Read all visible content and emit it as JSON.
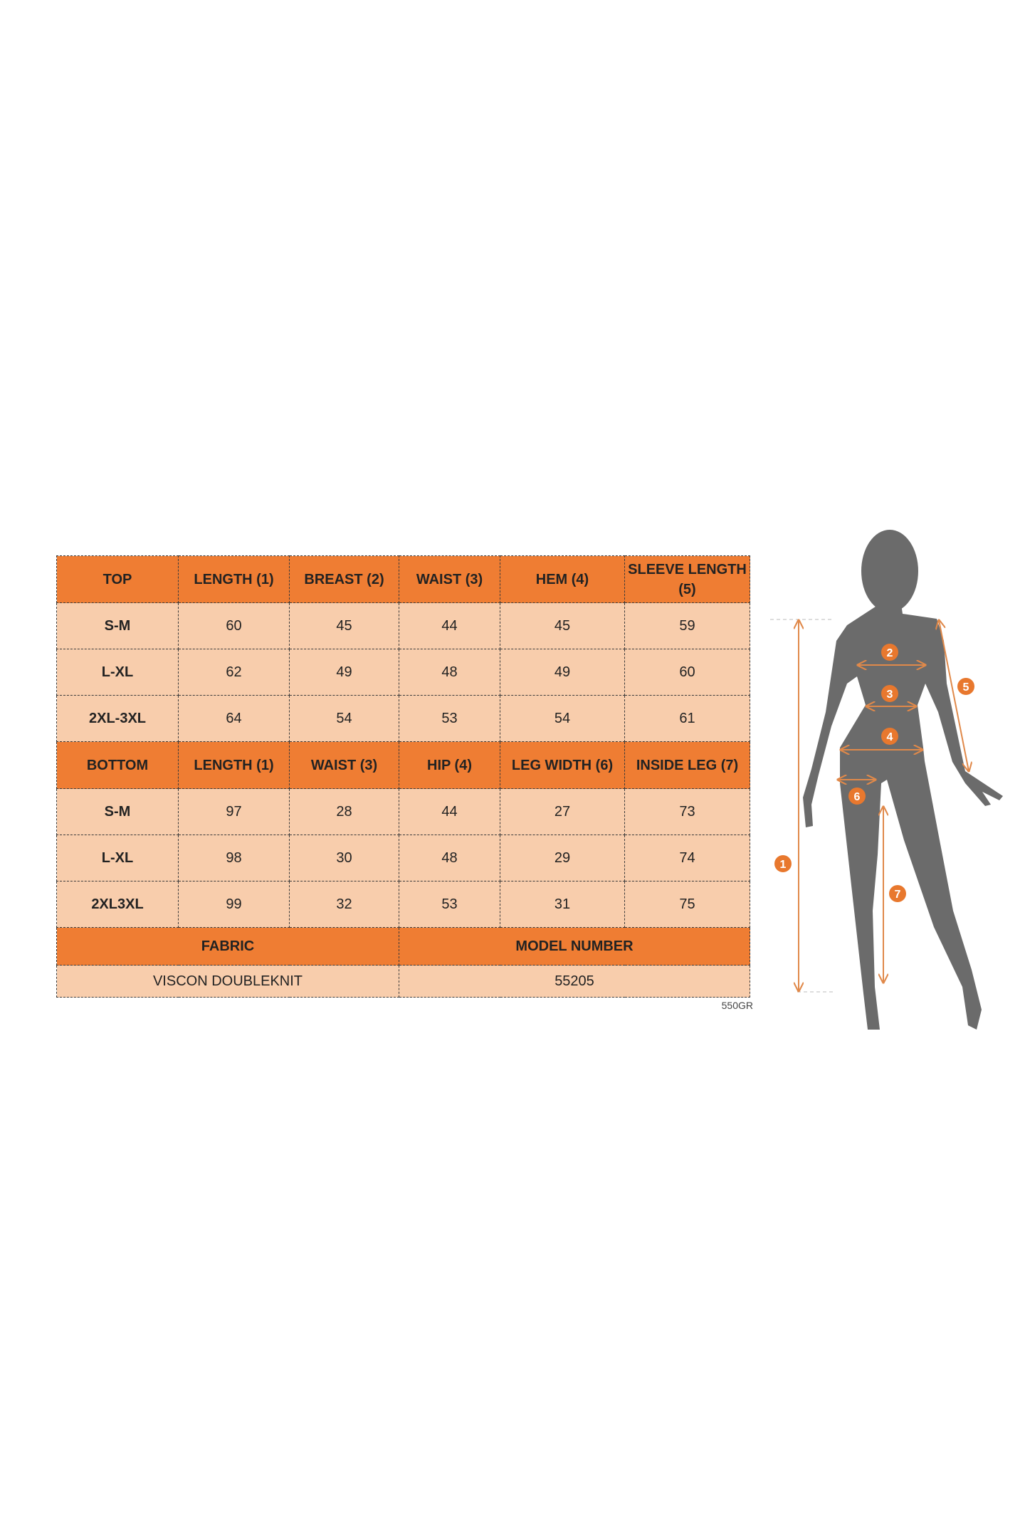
{
  "top": {
    "headers": [
      "TOP",
      "LENGTH (1)",
      "BREAST (2)",
      "WAIST (3)",
      "HEM (4)",
      "SLEEVE LENGTH (5)"
    ],
    "rows": [
      [
        "S-M",
        "60",
        "45",
        "44",
        "45",
        "59"
      ],
      [
        "L-XL",
        "62",
        "49",
        "48",
        "49",
        "60"
      ],
      [
        "2XL-3XL",
        "64",
        "54",
        "53",
        "54",
        "61"
      ]
    ]
  },
  "bottom": {
    "headers": [
      "BOTTOM",
      "LENGTH (1)",
      "WAIST (3)",
      "HIP (4)",
      "LEG WIDTH (6)",
      "INSIDE LEG (7)"
    ],
    "rows": [
      [
        "S-M",
        "97",
        "28",
        "44",
        "27",
        "73"
      ],
      [
        "L-XL",
        "98",
        "30",
        "48",
        "29",
        "74"
      ],
      [
        "2XL3XL",
        "99",
        "32",
        "53",
        "31",
        "75"
      ]
    ]
  },
  "footer": {
    "fabric_label": "FABRIC",
    "model_label": "MODEL NUMBER",
    "fabric_value": "VISCON DOUBLEKNIT",
    "model_value": "55205"
  },
  "code": "550GR",
  "figure": {
    "markers": [
      "1",
      "2",
      "3",
      "4",
      "5",
      "6",
      "7"
    ],
    "icon": "body-silhouette-with-measurement-arrows"
  },
  "colors": {
    "header": "#ef7d33",
    "cell": "#f8cdac",
    "silhouette": "#6b6b6b",
    "marker": "#e8782e"
  }
}
